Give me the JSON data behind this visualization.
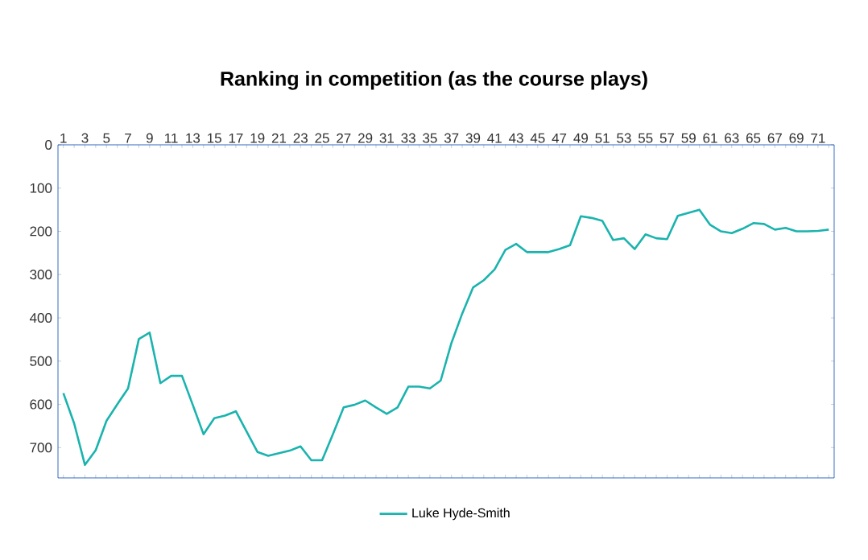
{
  "chart_data": {
    "type": "line",
    "title": "Ranking in competition (as the course plays)",
    "categories": [
      "1",
      null,
      "3",
      null,
      "5",
      null,
      "7",
      null,
      "9",
      null,
      "11",
      null,
      "13",
      null,
      "15",
      null,
      "17",
      null,
      "19",
      null,
      "21",
      null,
      "23",
      null,
      "25",
      null,
      "27",
      null,
      "29",
      null,
      "31",
      null,
      "33",
      null,
      "35",
      null,
      "37",
      null,
      "39",
      null,
      "41",
      null,
      "43",
      null,
      "45",
      null,
      "47",
      null,
      "49",
      null,
      "51",
      null,
      "53",
      null,
      "55",
      null,
      "57",
      null,
      "59",
      null,
      "61",
      null,
      "63",
      null,
      "65",
      null,
      "67",
      null,
      "69",
      null,
      "71",
      null
    ],
    "series": [
      {
        "name": "Luke Hyde-Smith",
        "color": "#1ab3ae",
        "values": [
          574,
          644,
          740,
          706,
          638,
          600,
          563,
          449,
          434,
          551,
          534,
          534,
          601,
          669,
          632,
          626,
          616,
          663,
          710,
          719,
          713,
          707,
          697,
          729,
          729,
          669,
          607,
          601,
          591,
          607,
          622,
          607,
          559,
          559,
          563,
          545,
          458,
          390,
          330,
          313,
          288,
          243,
          229,
          248,
          248,
          248,
          241,
          232,
          165,
          169,
          176,
          220,
          216,
          241,
          207,
          216,
          218,
          164,
          157,
          150,
          185,
          200,
          204,
          194,
          181,
          183,
          196,
          192,
          200,
          200,
          199,
          196
        ]
      }
    ],
    "ylim": [
      770,
      0
    ],
    "yticks": [
      0,
      100,
      200,
      300,
      400,
      500,
      600,
      700
    ],
    "legend": "bottom",
    "marker": "none",
    "line_style": "solid"
  }
}
